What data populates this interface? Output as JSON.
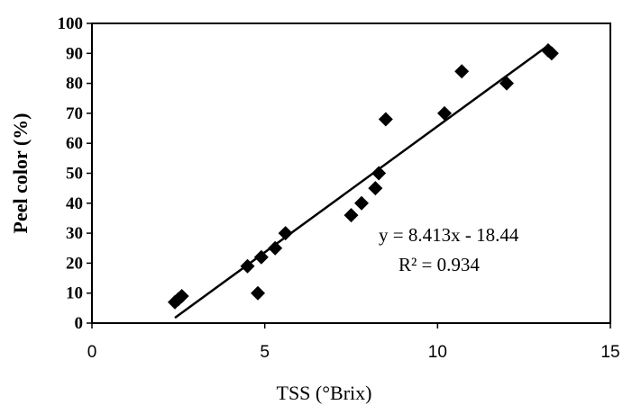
{
  "chart_data": {
    "type": "scatter",
    "xlabel": "TSS (°Brix)",
    "ylabel": "Peel color (%)",
    "xlim": [
      0,
      15
    ],
    "ylim": [
      0,
      100
    ],
    "x_ticks": [
      0,
      5,
      10,
      15
    ],
    "y_ticks": [
      0,
      10,
      20,
      30,
      40,
      50,
      60,
      70,
      80,
      90,
      100
    ],
    "grid": false,
    "marker": "diamond",
    "marker_color": "#000000",
    "points": [
      {
        "x": 2.4,
        "y": 7
      },
      {
        "x": 2.5,
        "y": 8
      },
      {
        "x": 2.6,
        "y": 9
      },
      {
        "x": 4.5,
        "y": 19
      },
      {
        "x": 4.8,
        "y": 10
      },
      {
        "x": 4.9,
        "y": 22
      },
      {
        "x": 5.3,
        "y": 25
      },
      {
        "x": 5.6,
        "y": 30
      },
      {
        "x": 7.5,
        "y": 36
      },
      {
        "x": 7.8,
        "y": 40
      },
      {
        "x": 8.2,
        "y": 45
      },
      {
        "x": 8.3,
        "y": 50
      },
      {
        "x": 8.5,
        "y": 68
      },
      {
        "x": 10.2,
        "y": 70
      },
      {
        "x": 10.7,
        "y": 84
      },
      {
        "x": 12.0,
        "y": 80
      },
      {
        "x": 13.2,
        "y": 91
      },
      {
        "x": 13.3,
        "y": 90
      }
    ],
    "trendline": {
      "slope": 8.413,
      "intercept": -18.44,
      "x_range": [
        2.4,
        13.2
      ]
    },
    "annotation": {
      "equation": "y = 8.413x - 18.44",
      "r_squared": "R² = 0.934"
    }
  }
}
